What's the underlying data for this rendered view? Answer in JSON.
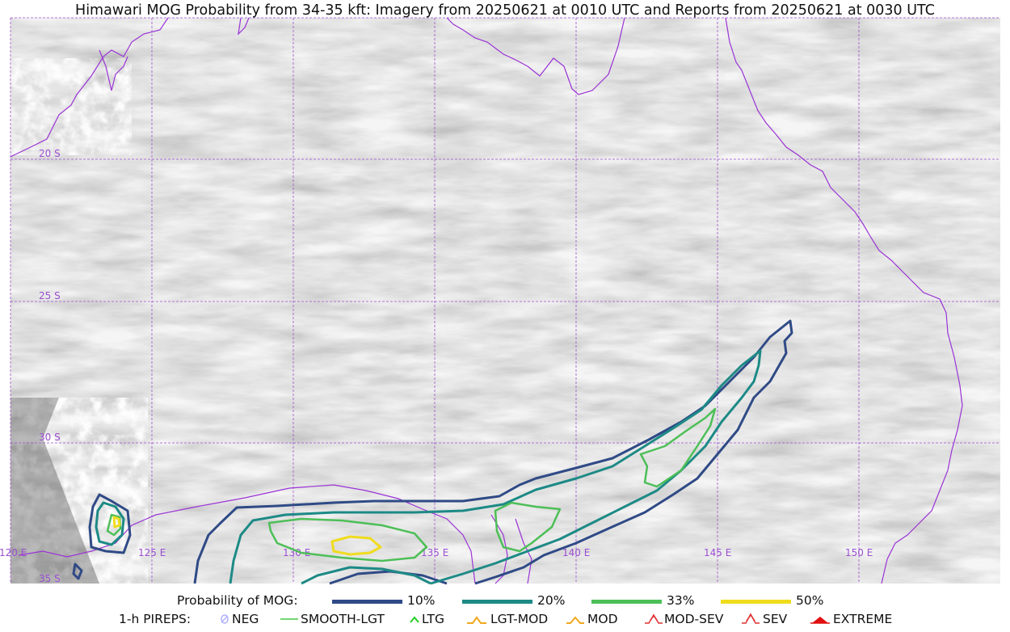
{
  "title": "Himawari MOG Probability from 34-35 kft: Imagery from 20250621 at 0010 UTC and Reports from 20250621 at 0030 UTC",
  "map": {
    "graticule": {
      "lat_labels": [
        "20 S",
        "25 S",
        "30 S",
        "35 S"
      ],
      "lon_labels": [
        "120 E",
        "125 E",
        "130 E",
        "135 E",
        "140 E",
        "145 E",
        "150 E"
      ],
      "line_color": "#9b4fd0"
    },
    "coastline_color": "#9a33d6",
    "background": "grayscale water-vapor imagery",
    "contours": [
      {
        "level": "10%",
        "color": "#2f4a86"
      },
      {
        "level": "20%",
        "color": "#1d8a86"
      },
      {
        "level": "33%",
        "color": "#4dbf57"
      },
      {
        "level": "50%",
        "color": "#f0dc1e"
      }
    ]
  },
  "legend": {
    "probability_label": "Probability of MOG:",
    "probability_items": [
      {
        "label": "10%",
        "color": "#2f4a86"
      },
      {
        "label": "20%",
        "color": "#1d8a86"
      },
      {
        "label": "33%",
        "color": "#4dbf57"
      },
      {
        "label": "50%",
        "color": "#f0dc1e"
      }
    ],
    "pireps_label": "1-h PIREPS:",
    "pirep_items": [
      {
        "label": "NEG",
        "icon": "neg-icon",
        "color": "#b0b0ff"
      },
      {
        "label": "SMOOTH-LGT",
        "icon": "smooth-lgt-icon",
        "color": "#44cc44"
      },
      {
        "label": "LTG",
        "icon": "ltg-icon",
        "color": "#22cc22"
      },
      {
        "label": "LGT-MOD",
        "icon": "lgt-mod-icon",
        "color": "#f0a81e"
      },
      {
        "label": "MOD",
        "icon": "mod-icon",
        "color": "#f0a81e"
      },
      {
        "label": "MOD-SEV",
        "icon": "mod-sev-icon",
        "color": "#e03030"
      },
      {
        "label": "SEV",
        "icon": "sev-icon",
        "color": "#e03030"
      },
      {
        "label": "EXTREME",
        "icon": "extreme-icon",
        "color": "#e01010"
      }
    ]
  }
}
